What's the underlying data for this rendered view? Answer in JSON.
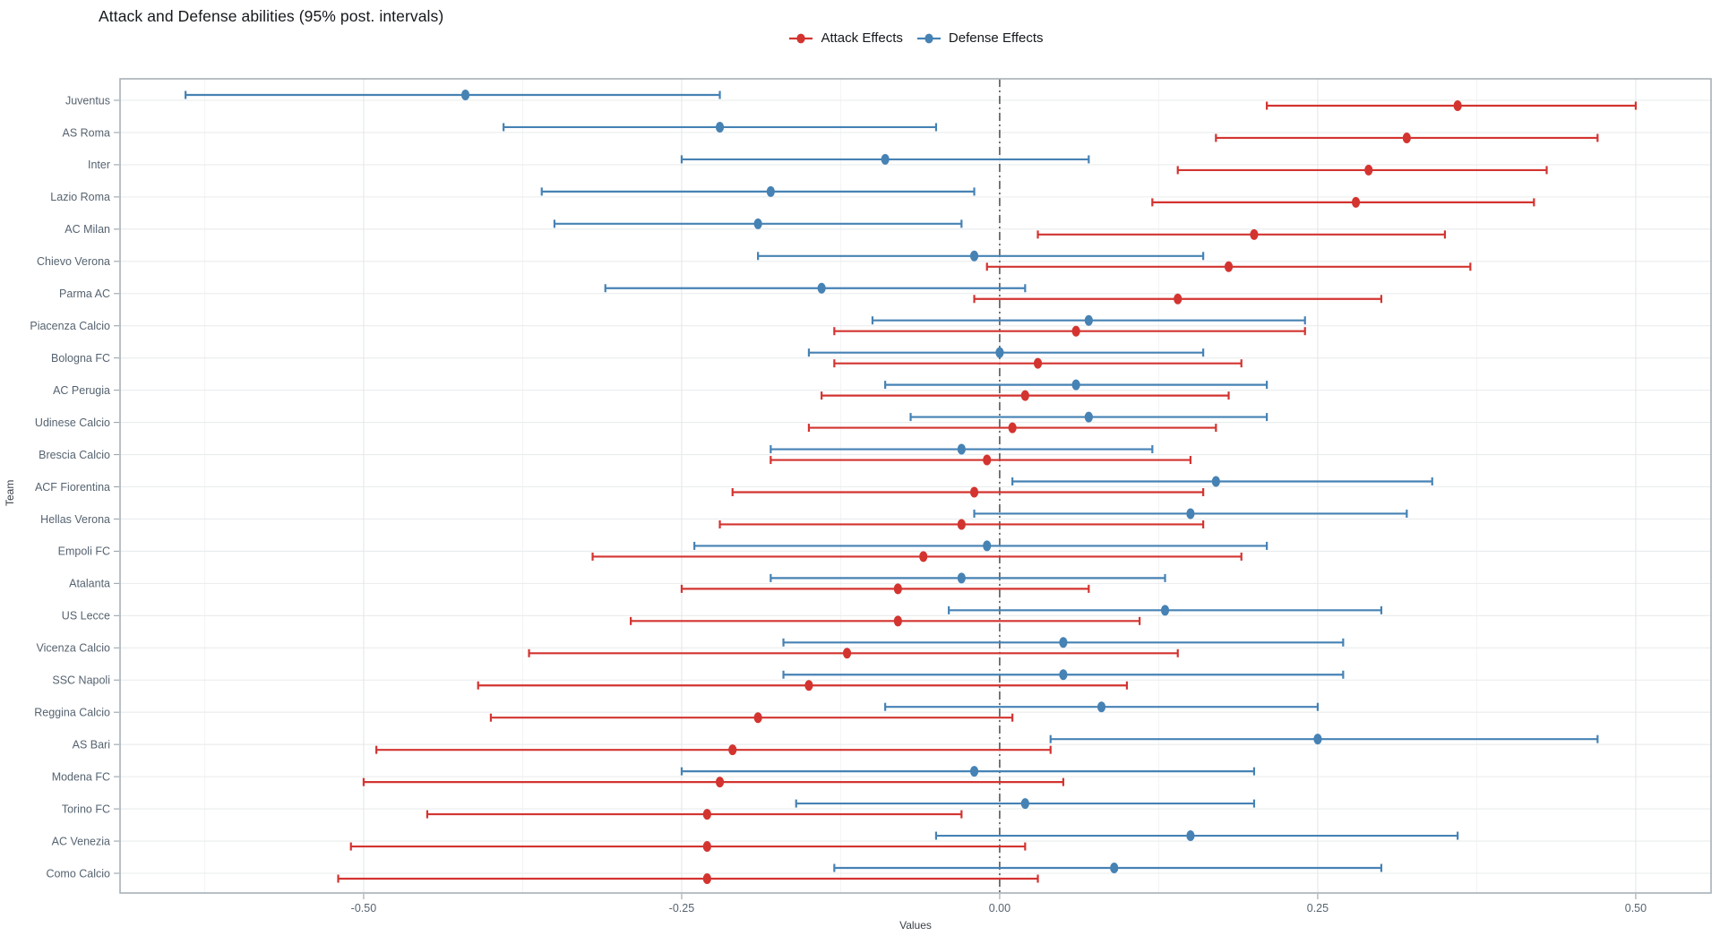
{
  "chart_data": {
    "type": "pointrange",
    "title": "Attack and Defense abilities (95% post. intervals)",
    "xlabel": "Values",
    "ylabel": "Team",
    "x_domain": [
      -0.6915,
      0.5592
    ],
    "x_tick_values": [
      -0.5,
      -0.25,
      0.0,
      0.25,
      0.5
    ],
    "x_tick_labels": [
      "-0.50",
      "-0.25",
      "0.00",
      "0.25",
      "0.50"
    ],
    "x_minor_values": [
      -0.625,
      -0.375,
      -0.125,
      0.125,
      0.375
    ],
    "zero_line": 0.0,
    "grid": true,
    "legend_position": "top-center",
    "legend": [
      {
        "name": "Attack Effects",
        "color": "#d33430"
      },
      {
        "name": "Defense Effects",
        "color": "#4682b4"
      }
    ],
    "teams": [
      "Juventus",
      "AS Roma",
      "Inter",
      "Lazio Roma",
      "AC Milan",
      "Chievo Verona",
      "Parma AC",
      "Piacenza Calcio",
      "Bologna FC",
      "AC Perugia",
      "Udinese Calcio",
      "Brescia Calcio",
      "ACF Fiorentina",
      "Hellas Verona",
      "Empoli FC",
      "Atalanta",
      "US Lecce",
      "Vicenza Calcio",
      "SSC Napoli",
      "Reggina Calcio",
      "AS Bari",
      "Modena FC",
      "Torino FC",
      "AC Venezia",
      "Como Calcio"
    ],
    "series": [
      {
        "name": "Attack Effects",
        "key": "attack",
        "color": "#d33430",
        "points": [
          {
            "team": "Juventus",
            "lo": 0.21,
            "est": 0.36,
            "hi": 0.5
          },
          {
            "team": "AS Roma",
            "lo": 0.17,
            "est": 0.32,
            "hi": 0.47
          },
          {
            "team": "Inter",
            "lo": 0.14,
            "est": 0.29,
            "hi": 0.43
          },
          {
            "team": "Lazio Roma",
            "lo": 0.12,
            "est": 0.28,
            "hi": 0.42
          },
          {
            "team": "AC Milan",
            "lo": 0.03,
            "est": 0.2,
            "hi": 0.35
          },
          {
            "team": "Chievo Verona",
            "lo": -0.01,
            "est": 0.18,
            "hi": 0.37
          },
          {
            "team": "Parma AC",
            "lo": -0.02,
            "est": 0.14,
            "hi": 0.3
          },
          {
            "team": "Piacenza Calcio",
            "lo": -0.13,
            "est": 0.06,
            "hi": 0.24
          },
          {
            "team": "Bologna FC",
            "lo": -0.13,
            "est": 0.03,
            "hi": 0.19
          },
          {
            "team": "AC Perugia",
            "lo": -0.14,
            "est": 0.02,
            "hi": 0.18
          },
          {
            "team": "Udinese Calcio",
            "lo": -0.15,
            "est": 0.01,
            "hi": 0.17
          },
          {
            "team": "Brescia Calcio",
            "lo": -0.18,
            "est": -0.01,
            "hi": 0.15
          },
          {
            "team": "ACF Fiorentina",
            "lo": -0.21,
            "est": -0.02,
            "hi": 0.16
          },
          {
            "team": "Hellas Verona",
            "lo": -0.22,
            "est": -0.03,
            "hi": 0.16
          },
          {
            "team": "Empoli FC",
            "lo": -0.32,
            "est": -0.06,
            "hi": 0.19
          },
          {
            "team": "Atalanta",
            "lo": -0.25,
            "est": -0.08,
            "hi": 0.07
          },
          {
            "team": "US Lecce",
            "lo": -0.29,
            "est": -0.08,
            "hi": 0.11
          },
          {
            "team": "Vicenza Calcio",
            "lo": -0.37,
            "est": -0.12,
            "hi": 0.14
          },
          {
            "team": "SSC Napoli",
            "lo": -0.41,
            "est": -0.15,
            "hi": 0.1
          },
          {
            "team": "Reggina Calcio",
            "lo": -0.4,
            "est": -0.19,
            "hi": 0.01
          },
          {
            "team": "AS Bari",
            "lo": -0.49,
            "est": -0.21,
            "hi": 0.04
          },
          {
            "team": "Modena FC",
            "lo": -0.5,
            "est": -0.22,
            "hi": 0.05
          },
          {
            "team": "Torino FC",
            "lo": -0.45,
            "est": -0.23,
            "hi": -0.03
          },
          {
            "team": "AC Venezia",
            "lo": -0.51,
            "est": -0.23,
            "hi": 0.02
          },
          {
            "team": "Como Calcio",
            "lo": -0.52,
            "est": -0.23,
            "hi": 0.03
          }
        ]
      },
      {
        "name": "Defense Effects",
        "key": "defense",
        "color": "#4682b4",
        "points": [
          {
            "team": "Juventus",
            "lo": -0.64,
            "est": -0.42,
            "hi": -0.22
          },
          {
            "team": "AS Roma",
            "lo": -0.39,
            "est": -0.22,
            "hi": -0.05
          },
          {
            "team": "Inter",
            "lo": -0.25,
            "est": -0.09,
            "hi": 0.07
          },
          {
            "team": "Lazio Roma",
            "lo": -0.36,
            "est": -0.18,
            "hi": -0.02
          },
          {
            "team": "AC Milan",
            "lo": -0.35,
            "est": -0.19,
            "hi": -0.03
          },
          {
            "team": "Chievo Verona",
            "lo": -0.19,
            "est": -0.02,
            "hi": 0.16
          },
          {
            "team": "Parma AC",
            "lo": -0.31,
            "est": -0.14,
            "hi": 0.02
          },
          {
            "team": "Piacenza Calcio",
            "lo": -0.1,
            "est": 0.07,
            "hi": 0.24
          },
          {
            "team": "Bologna FC",
            "lo": -0.15,
            "est": 0.0,
            "hi": 0.16
          },
          {
            "team": "AC Perugia",
            "lo": -0.09,
            "est": 0.06,
            "hi": 0.21
          },
          {
            "team": "Udinese Calcio",
            "lo": -0.07,
            "est": 0.07,
            "hi": 0.21
          },
          {
            "team": "Brescia Calcio",
            "lo": -0.18,
            "est": -0.03,
            "hi": 0.12
          },
          {
            "team": "ACF Fiorentina",
            "lo": 0.01,
            "est": 0.17,
            "hi": 0.34
          },
          {
            "team": "Hellas Verona",
            "lo": -0.02,
            "est": 0.15,
            "hi": 0.32
          },
          {
            "team": "Empoli FC",
            "lo": -0.24,
            "est": -0.01,
            "hi": 0.21
          },
          {
            "team": "Atalanta",
            "lo": -0.18,
            "est": -0.03,
            "hi": 0.13
          },
          {
            "team": "US Lecce",
            "lo": -0.04,
            "est": 0.13,
            "hi": 0.3
          },
          {
            "team": "Vicenza Calcio",
            "lo": -0.17,
            "est": 0.05,
            "hi": 0.27
          },
          {
            "team": "SSC Napoli",
            "lo": -0.17,
            "est": 0.05,
            "hi": 0.27
          },
          {
            "team": "Reggina Calcio",
            "lo": -0.09,
            "est": 0.08,
            "hi": 0.25
          },
          {
            "team": "AS Bari",
            "lo": 0.04,
            "est": 0.25,
            "hi": 0.47
          },
          {
            "team": "Modena FC",
            "lo": -0.25,
            "est": -0.02,
            "hi": 0.2
          },
          {
            "team": "Torino FC",
            "lo": -0.16,
            "est": 0.02,
            "hi": 0.2
          },
          {
            "team": "AC Venezia",
            "lo": -0.05,
            "est": 0.15,
            "hi": 0.36
          },
          {
            "team": "Como Calcio",
            "lo": -0.13,
            "est": 0.09,
            "hi": 0.3
          }
        ]
      }
    ],
    "style": {
      "panel_border": "#a6b0b8",
      "grid_major": "#e4e8eb",
      "grid_major_h": "#e9eced",
      "grid_minor": "#f2f4f5",
      "tick_mark": "#9aa5ad",
      "tick_label": "#566370",
      "axis_title": "#3a4148",
      "zero_line": "#1f1f1f",
      "title_color": "#15191d"
    }
  }
}
